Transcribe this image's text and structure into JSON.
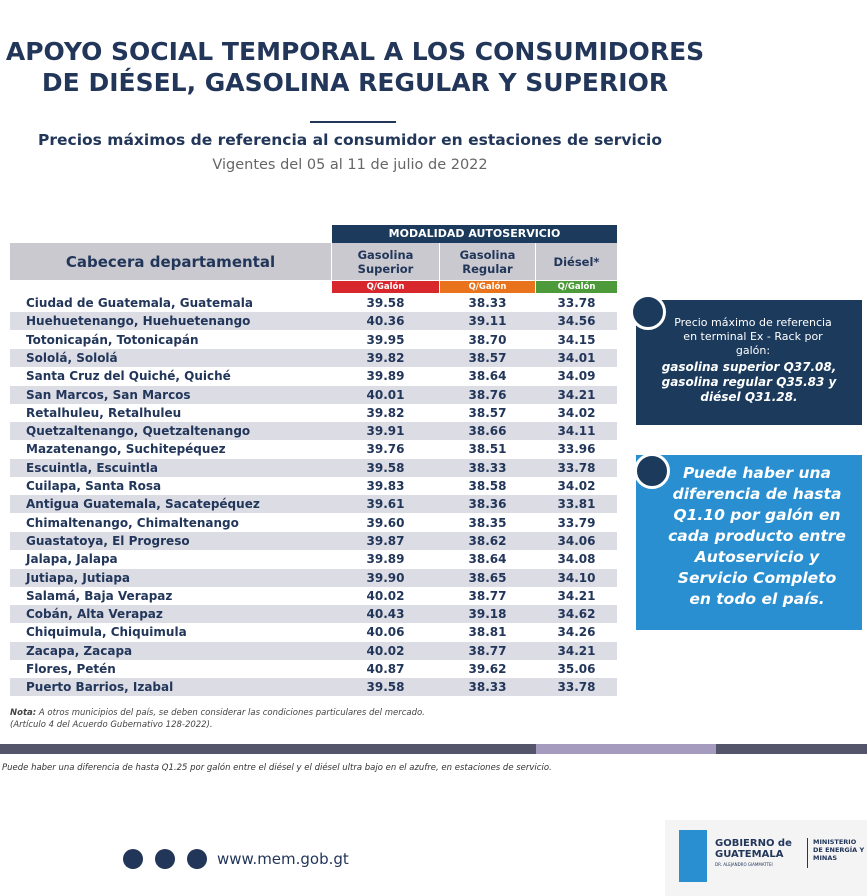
{
  "header": {
    "title_lines": [
      "APOYO SOCIAL TEMPORAL A LOS CONSUMIDORES",
      "DE DIÉSEL, GASOLINA REGULAR Y SUPERIOR"
    ],
    "subtitle": "Precios máximos de referencia al consumidor en estaciones de servicio",
    "dates": "Vigentes del 05 al 11 de julio de 2022"
  },
  "table": {
    "group_header": "MODALIDAD AUTOSERVICIO",
    "columns": [
      "Cabecera departamental",
      "Gasolina Superior",
      "Gasolina Regular",
      "Diésel*"
    ],
    "units": [
      "Q/Galón",
      "Q/Galón",
      "Q/Galón"
    ],
    "rows": [
      [
        "Ciudad de Guatemala, Guatemala",
        "39.58",
        "38.33",
        "33.78"
      ],
      [
        "Huehuetenango, Huehuetenango",
        "40.36",
        "39.11",
        "34.56"
      ],
      [
        "Totonicapán, Totonicapán",
        "39.95",
        "38.70",
        "34.15"
      ],
      [
        "Sololá, Sololá",
        "39.82",
        "38.57",
        "34.01"
      ],
      [
        "Santa Cruz del Quiché, Quiché",
        "39.89",
        "38.64",
        "34.09"
      ],
      [
        "San Marcos, San Marcos",
        "40.01",
        "38.76",
        "34.21"
      ],
      [
        "Retalhuleu, Retalhuleu",
        "39.82",
        "38.57",
        "34.02"
      ],
      [
        "Quetzaltenango, Quetzaltenango",
        "39.91",
        "38.66",
        "34.11"
      ],
      [
        "Mazatenango, Suchitepéquez",
        "39.76",
        "38.51",
        "33.96"
      ],
      [
        "Escuintla, Escuintla",
        "39.58",
        "38.33",
        "33.78"
      ],
      [
        "Cuilapa, Santa Rosa",
        "39.83",
        "38.58",
        "34.02"
      ],
      [
        "Antigua Guatemala, Sacatepéquez",
        "39.61",
        "38.36",
        "33.81"
      ],
      [
        "Chimaltenango, Chimaltenango",
        "39.60",
        "38.35",
        "33.79"
      ],
      [
        "Guastatoya, El Progreso",
        "39.87",
        "38.62",
        "34.06"
      ],
      [
        "Jalapa, Jalapa",
        "39.89",
        "38.64",
        "34.08"
      ],
      [
        "Jutiapa, Jutiapa",
        "39.90",
        "38.65",
        "34.10"
      ],
      [
        "Salamá, Baja Verapaz",
        "40.02",
        "38.77",
        "34.21"
      ],
      [
        "Cobán, Alta Verapaz",
        "40.43",
        "39.18",
        "34.62"
      ],
      [
        "Chiquimula, Chiquimula",
        "40.06",
        "38.81",
        "34.26"
      ],
      [
        "Zacapa, Zacapa",
        "40.02",
        "38.77",
        "34.21"
      ],
      [
        "Flores, Petén",
        "40.87",
        "39.62",
        "35.06"
      ],
      [
        "Puerto Barrios, Izabal",
        "39.58",
        "38.33",
        "33.78"
      ]
    ]
  },
  "side": {
    "terminal_intro": "Precio máximo  de referencia en terminal Ex - Rack por galón:",
    "terminal_prices": "gasolina superior Q37.08, gasolina regular Q35.83 y diésel Q31.28.",
    "difference": "Puede haber una diferencia de hasta Q1.10 por galón en cada producto entre Autoservicio y Servicio Completo en todo el país."
  },
  "note": {
    "label": "Nota:",
    "text": "A otros municipios del país, se deben considerar las condiciones particulares del mercado.",
    "reference": "(Artículo 4 del Acuerdo Gubernativo 128-2022)."
  },
  "footnote": "Puede haber una diferencia de hasta Q1.25 por galón entre el diésel y el diésel ultra bajo en el azufre, en estaciones de servicio.",
  "footer": {
    "url": "www.mem.gob.gt",
    "logo_gov": "GOBIERNO de GUATEMALA",
    "logo_president": "DR. ALEJANDRO GIAMMATTEI",
    "logo_ministry": "MINISTERIO DE ENERGÍA Y MINAS"
  }
}
